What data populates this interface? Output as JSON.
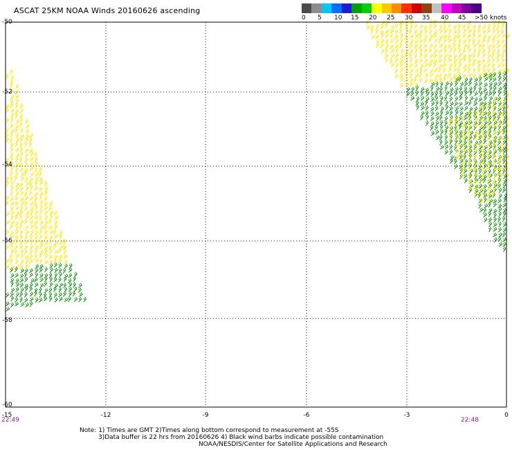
{
  "title": "ASCAT 25KM NOAA Winds 20160626 ascending",
  "colorbar": {
    "labels": [
      "0",
      "5",
      "10",
      "15",
      "20",
      "25",
      "30",
      "35",
      "40",
      "45",
      ">50 knots"
    ],
    "colors": [
      "#4a4a4a",
      "#8c8c8c",
      "#00c8ff",
      "#0070ff",
      "#1c1cd6",
      "#00a000",
      "#00d000",
      "#ffff00",
      "#ffc800",
      "#ff8c00",
      "#ff3000",
      "#d00000",
      "#8b4513",
      "#c0c0c0",
      "#ff00ff",
      "#c000c0",
      "#8000a0",
      "#4b0082"
    ]
  },
  "axes": {
    "y_labels": [
      "-50",
      "-52",
      "-54",
      "-56",
      "-58",
      "-60"
    ],
    "x_labels": [
      "-15",
      "-12",
      "-9",
      "-6",
      "-3",
      "0"
    ],
    "x_range": [
      -15,
      0
    ],
    "y_range": [
      -60,
      -50
    ]
  },
  "swaths": [
    {
      "name": "west-swath",
      "time": "22:49"
    },
    {
      "name": "east-swath",
      "time": "22:48"
    }
  ],
  "wind_colors": {
    "yellow": "#ffe600",
    "green": "#0f8f0f"
  },
  "notes": {
    "line1": "Note: 1) Times are GMT 2)Times along bottom correspond to measurement at -55S",
    "line2": "3)Data buffer is 22 hrs from 20160626 4) Black wind barbs indicate possible contamination",
    "line3": "NOAA/NESDIS/Center for Satellite Applications and Research"
  }
}
